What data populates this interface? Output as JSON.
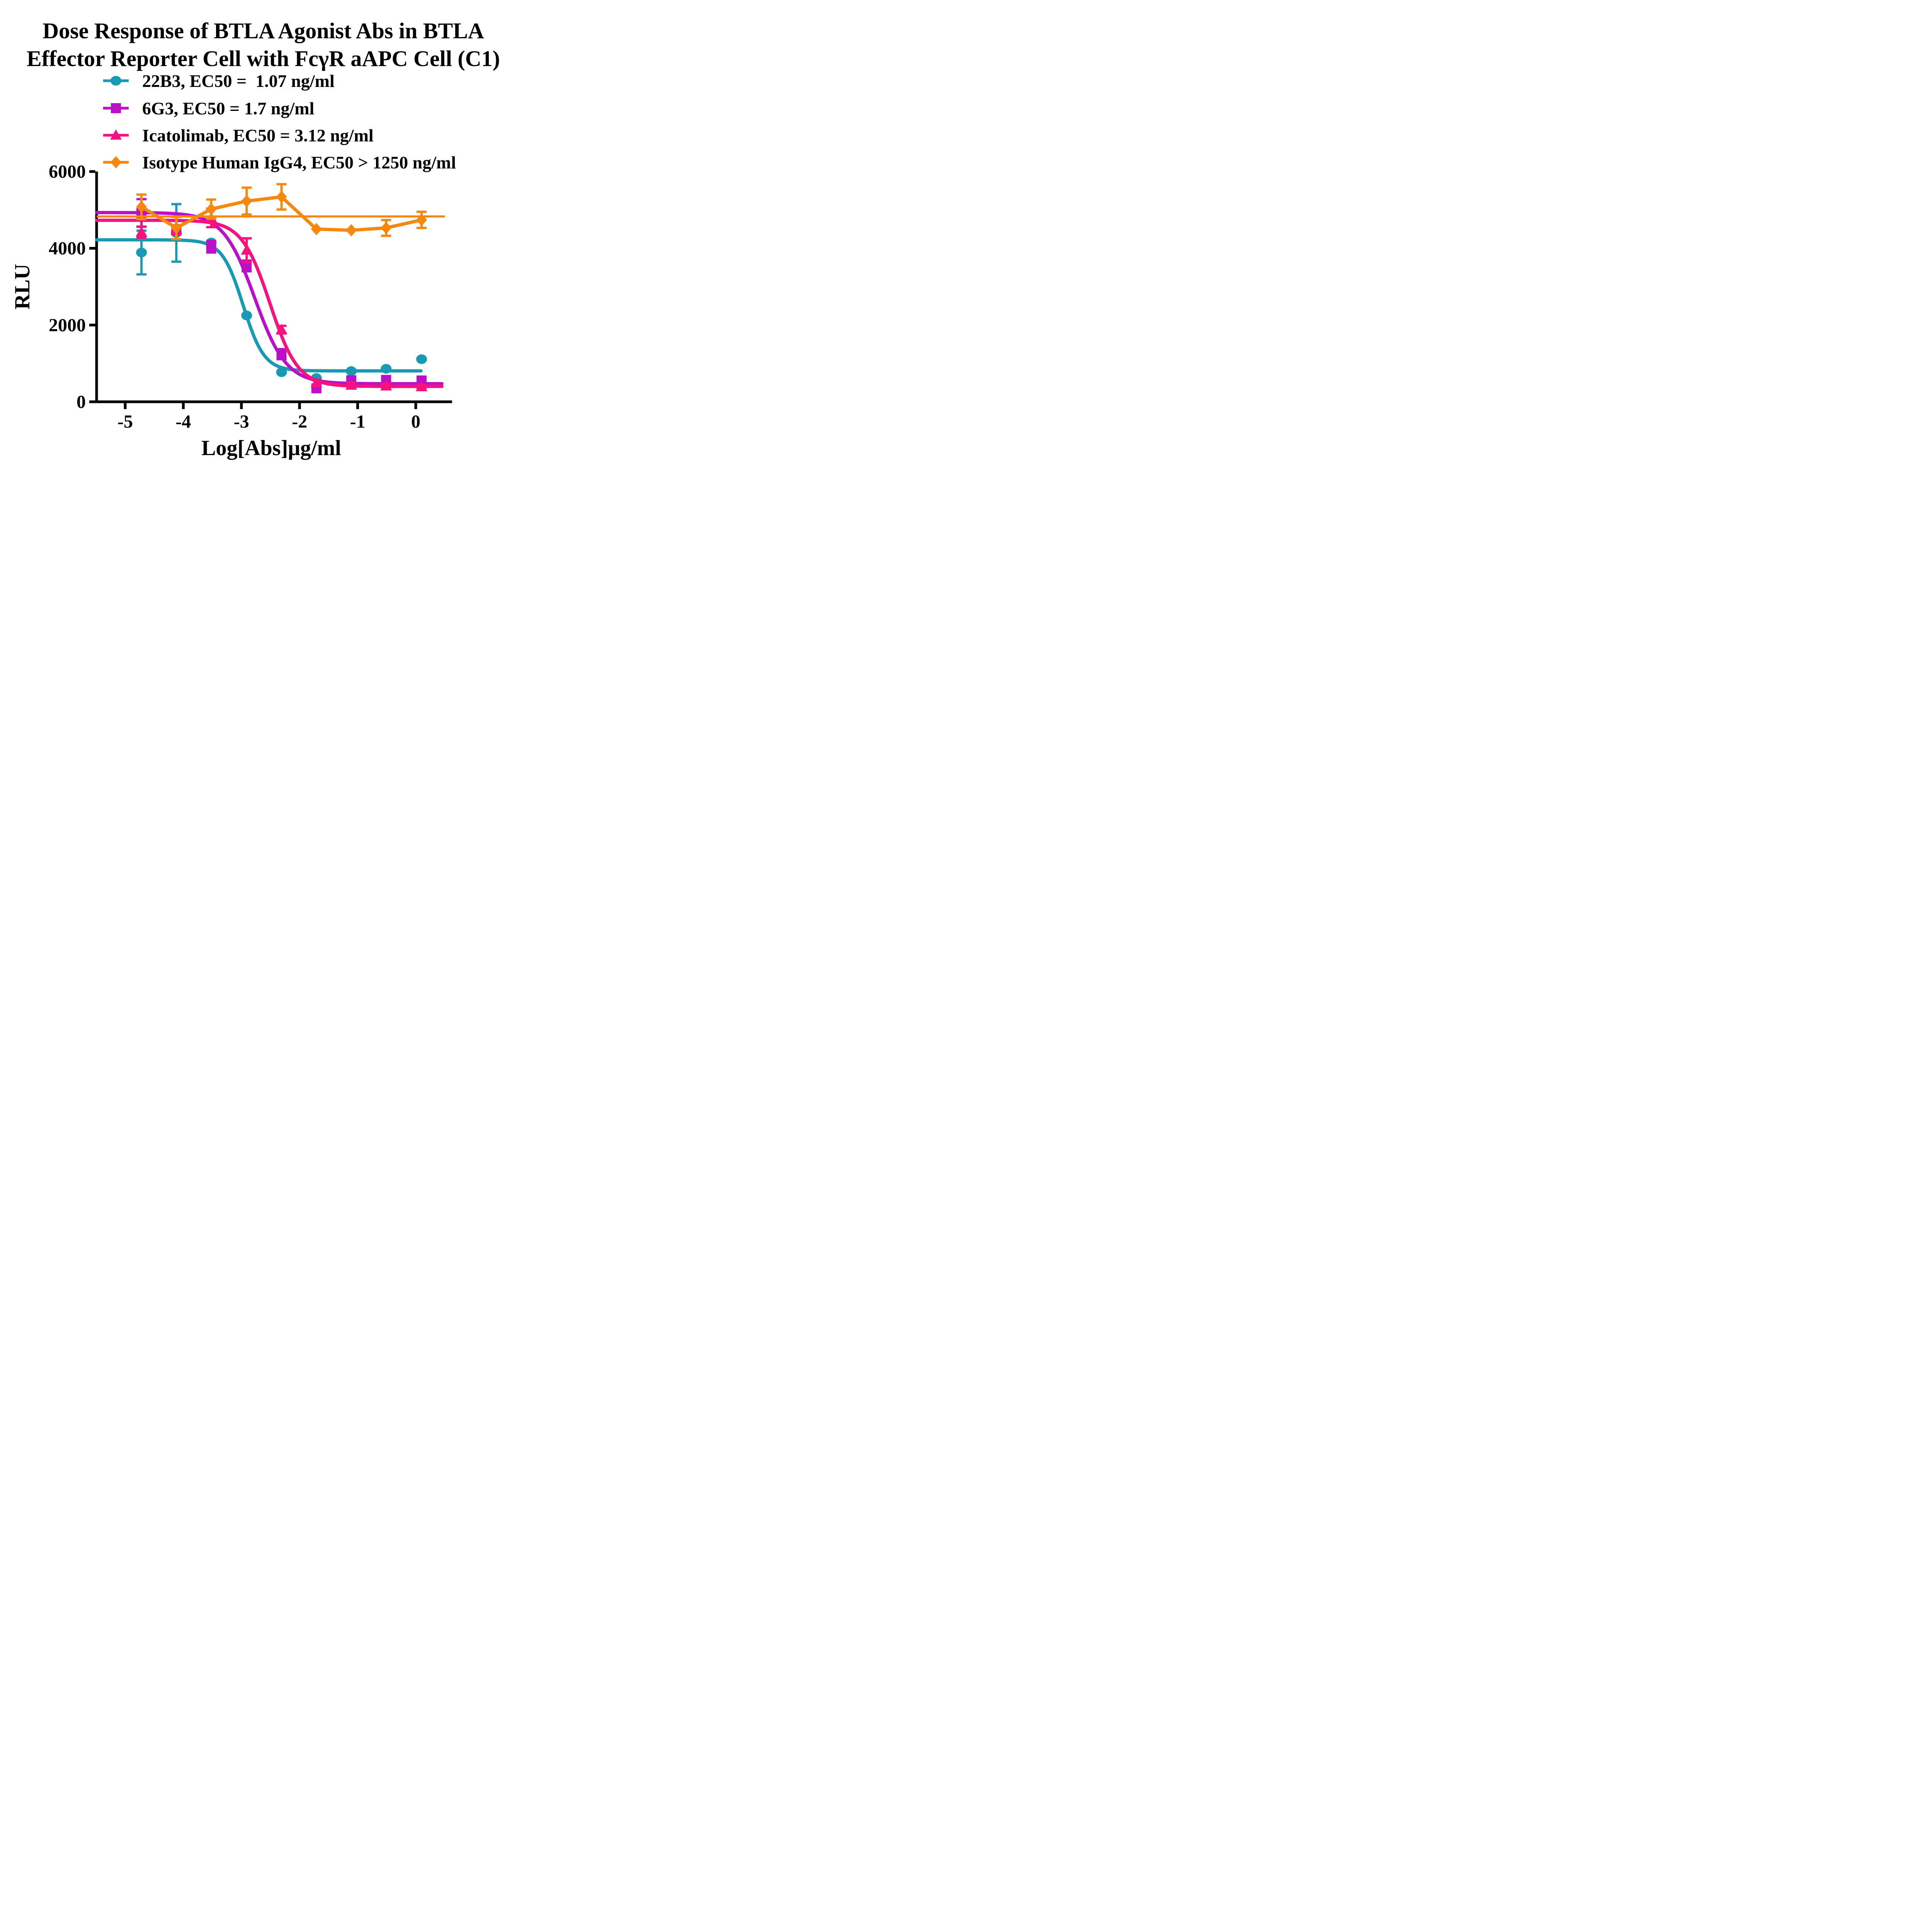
{
  "chart_data": {
    "type": "scatter",
    "title_line1": "Dose Response of BTLA Agonist Abs in BTLA",
    "title_line2": "Effector Reporter Cell with FcγR aAPC Cell (C1)",
    "xlabel": "Log[Abs]μg/ml",
    "ylabel": "RLU",
    "x_ticks": [
      -5,
      -4,
      -3,
      -2,
      -1,
      0
    ],
    "y_ticks": [
      0,
      2000,
      4000,
      6000
    ],
    "xlim": [
      -5.49,
      0.62
    ],
    "ylim": [
      0,
      6000
    ],
    "grid": false,
    "legend_position": "top-left",
    "x": [
      -4.72,
      -4.12,
      -3.52,
      -2.91,
      -2.31,
      -1.71,
      -1.11,
      -0.51,
      0.1
    ],
    "series": [
      {
        "name": "22B3",
        "legend": "22B3, EC50 =  1.07 ng/ml",
        "ec50_text": "EC50 =  1.07 ng/ml",
        "marker": "circle",
        "color": "#1899B4",
        "values": [
          3890,
          4400,
          4150,
          2250,
          770,
          620,
          800,
          860,
          1110
        ],
        "errors": [
          570,
          750,
          0,
          0,
          0,
          0,
          0,
          0,
          0
        ],
        "fit": {
          "type": "4PL",
          "top": 4220,
          "bottom": 805,
          "logEC50": -2.97,
          "hill": -2.4,
          "x_end": 0.1
        }
      },
      {
        "name": "6G3",
        "legend": "6G3, EC50 = 1.7 ng/ml",
        "ec50_text": "EC50 = 1.7 ng/ml",
        "marker": "square",
        "color": "#BB0FC8",
        "values": [
          4920,
          4470,
          4040,
          3540,
          1240,
          350,
          560,
          570,
          555
        ],
        "errors": [
          360,
          0,
          150,
          140,
          130,
          70,
          60,
          95,
          70
        ],
        "fit": {
          "type": "4PL",
          "top": 4930,
          "bottom": 470,
          "logEC50": -2.77,
          "hill": -1.6,
          "x_end": 0.45
        }
      },
      {
        "name": "Icatolimab",
        "legend": "Icatolimab, EC50 = 3.12 ng/ml",
        "ec50_text": "EC50 = 3.12 ng/ml",
        "marker": "triangle",
        "color": "#F8127D",
        "values": [
          4420,
          4480,
          4790,
          3950,
          1880,
          490,
          430,
          410,
          390
        ],
        "errors": [
          145,
          120,
          240,
          310,
          100,
          80,
          70,
          60,
          50
        ],
        "fit": {
          "type": "4PL",
          "top": 4730,
          "bottom": 400,
          "logEC50": -2.51,
          "hill": -1.8,
          "x_end": 0.45
        }
      },
      {
        "name": "Isotype Human IgG4",
        "legend": "Isotype Human IgG4, EC50 > 1250 ng/ml",
        "ec50_text": "EC50 > 1250 ng/ml",
        "marker": "diamond",
        "color": "#F8870E",
        "connect_points": true,
        "values": [
          5080,
          4530,
          5020,
          5230,
          5340,
          4500,
          4470,
          4530,
          4740
        ],
        "errors": [
          320,
          290,
          250,
          350,
          330,
          0,
          0,
          205,
          210
        ],
        "fit": {
          "type": "flat",
          "value": 4830,
          "x_end": 0.5
        }
      }
    ]
  }
}
